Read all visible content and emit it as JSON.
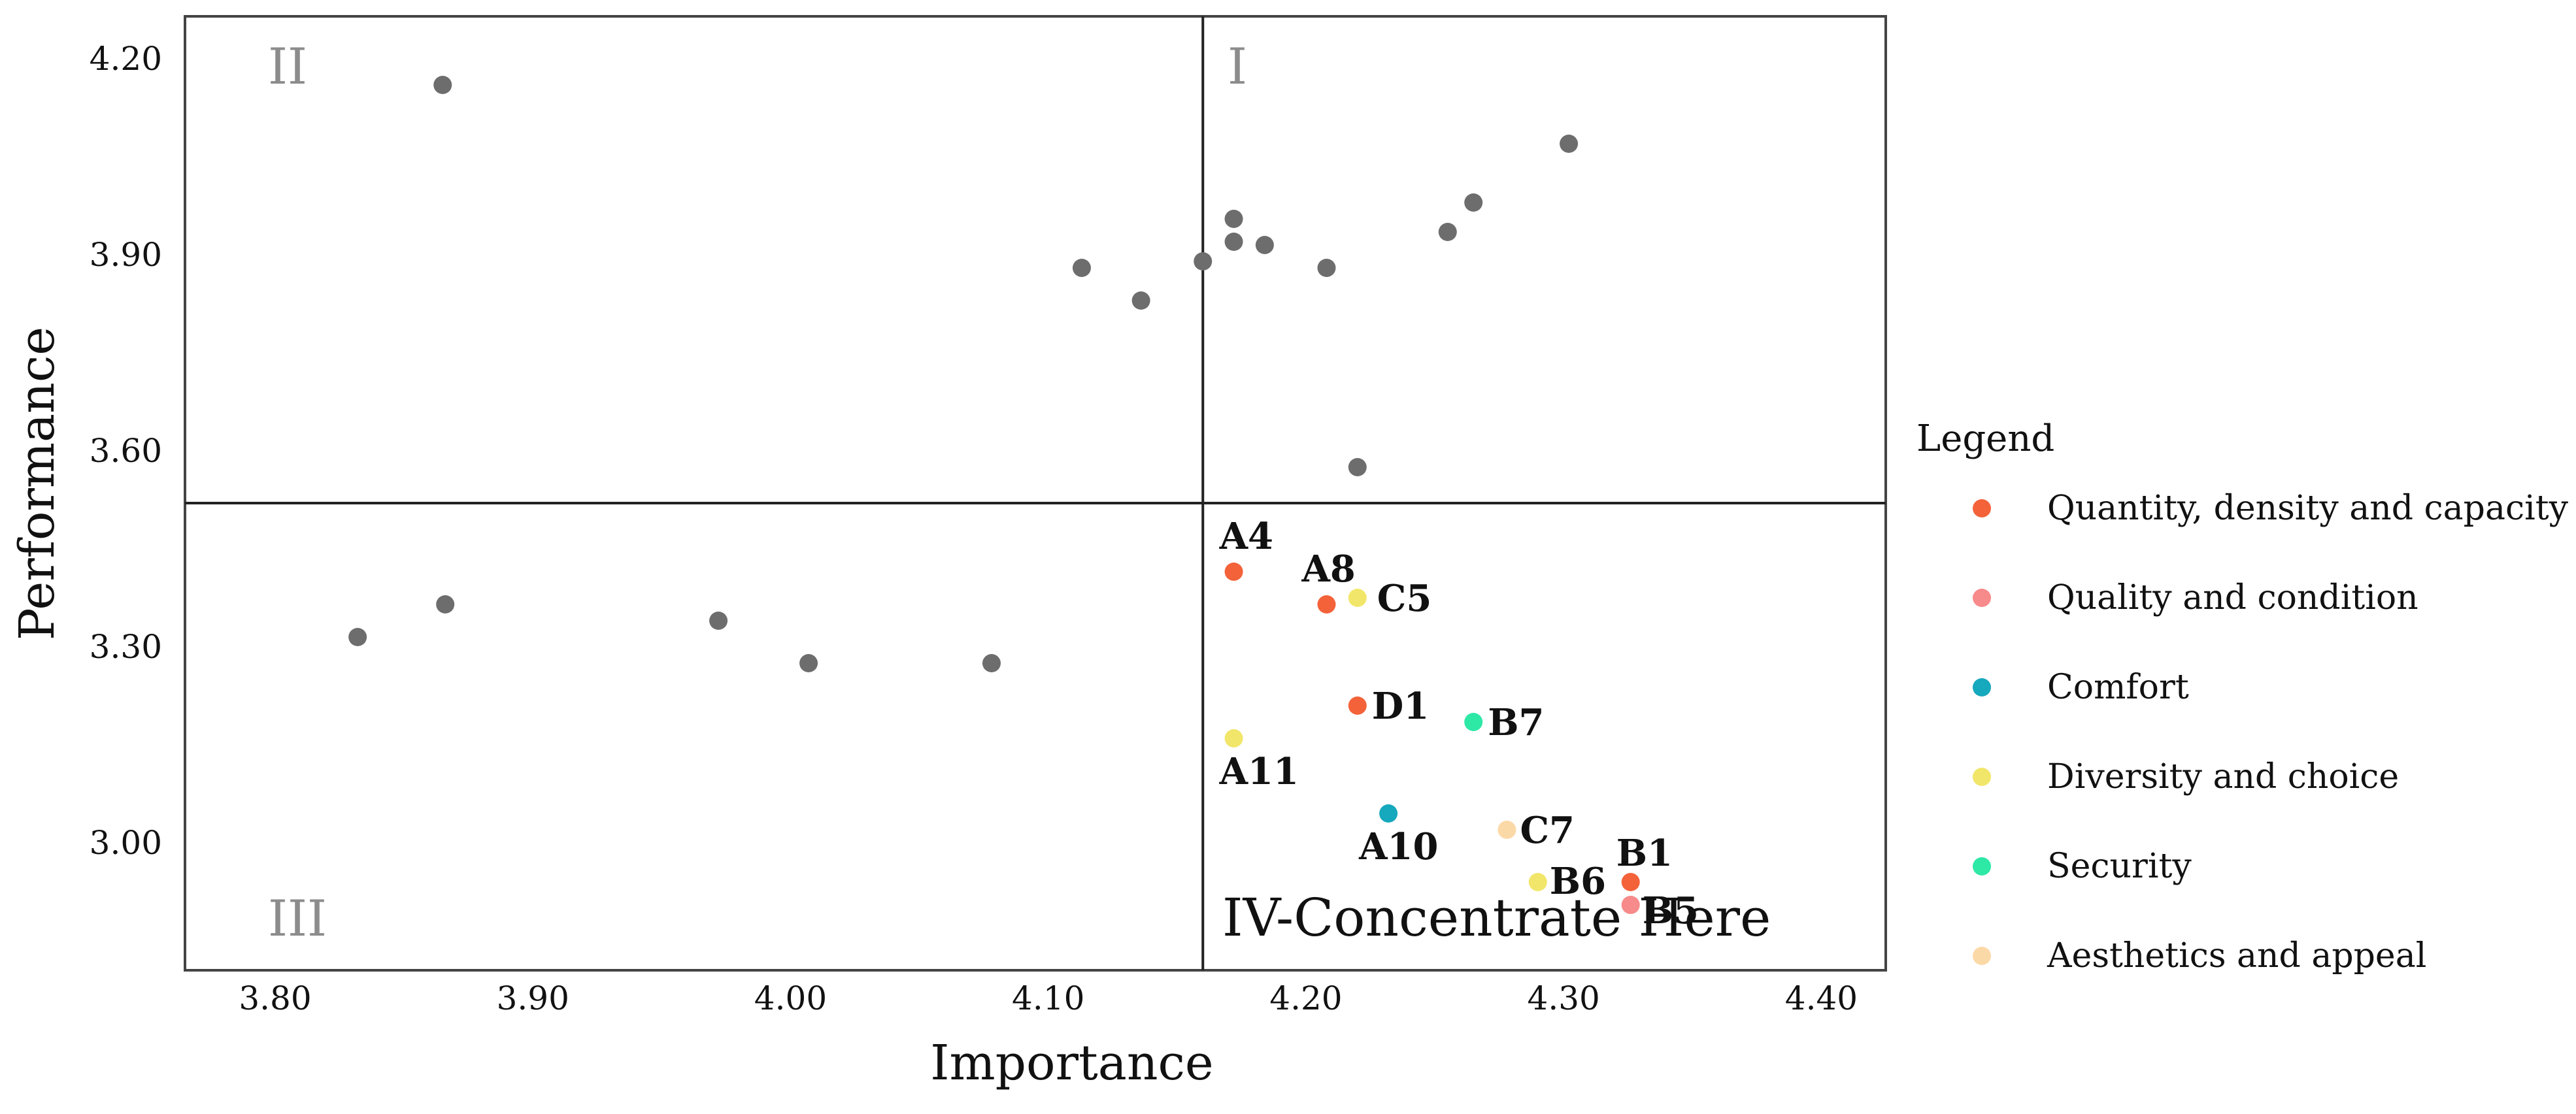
{
  "chart_data": {
    "type": "scatter",
    "title": "",
    "xlabel": "Importance",
    "ylabel": "Performance",
    "xlim": [
      3.765,
      4.425
    ],
    "ylim": [
      2.805,
      4.265
    ],
    "xticks": [
      "3.80",
      "3.90",
      "4.00",
      "4.10",
      "4.20",
      "4.30",
      "4.40"
    ],
    "yticks": [
      "3.00",
      "3.30",
      "3.60",
      "3.90",
      "4.20"
    ],
    "divider_x": 4.16,
    "divider_y": 3.52,
    "quadrants": {
      "I": "I",
      "II": "II",
      "III": "III",
      "IV": "IV-Concentrate Here"
    },
    "background_points": [
      {
        "x": 3.865,
        "y": 4.16
      },
      {
        "x": 4.302,
        "y": 4.07
      },
      {
        "x": 4.265,
        "y": 3.98
      },
      {
        "x": 4.255,
        "y": 3.935
      },
      {
        "x": 4.172,
        "y": 3.955
      },
      {
        "x": 4.172,
        "y": 3.92
      },
      {
        "x": 4.184,
        "y": 3.915
      },
      {
        "x": 4.16,
        "y": 3.89
      },
      {
        "x": 4.113,
        "y": 3.88
      },
      {
        "x": 4.208,
        "y": 3.88
      },
      {
        "x": 4.136,
        "y": 3.83
      },
      {
        "x": 4.22,
        "y": 3.575
      },
      {
        "x": 3.832,
        "y": 3.315
      },
      {
        "x": 3.866,
        "y": 3.365
      },
      {
        "x": 3.972,
        "y": 3.34
      },
      {
        "x": 4.007,
        "y": 3.275
      },
      {
        "x": 4.078,
        "y": 3.275
      }
    ],
    "labeled_points": [
      {
        "label": "A4",
        "x": 4.172,
        "y": 3.415,
        "category": "Quantity, density and capacity"
      },
      {
        "label": "A8",
        "x": 4.208,
        "y": 3.365,
        "category": "Quantity, density and capacity"
      },
      {
        "label": "C5",
        "x": 4.22,
        "y": 3.375,
        "category": "Diversity and choice"
      },
      {
        "label": "D1",
        "x": 4.22,
        "y": 3.21,
        "category": "Quantity, density and capacity"
      },
      {
        "label": "B7",
        "x": 4.265,
        "y": 3.185,
        "category": "Security"
      },
      {
        "label": "A11",
        "x": 4.172,
        "y": 3.16,
        "category": "Diversity and choice"
      },
      {
        "label": "A10",
        "x": 4.232,
        "y": 3.045,
        "category": "Comfort"
      },
      {
        "label": "C7",
        "x": 4.278,
        "y": 3.02,
        "category": "Aesthetics and appeal"
      },
      {
        "label": "B1",
        "x": 4.326,
        "y": 2.94,
        "category": "Quantity, density and capacity"
      },
      {
        "label": "B6",
        "x": 4.29,
        "y": 2.94,
        "category": "Diversity and choice"
      },
      {
        "label": "B5",
        "x": 4.326,
        "y": 2.905,
        "category": "Quality and condition"
      }
    ],
    "legend": {
      "title": "Legend",
      "position": "right",
      "items": [
        {
          "name": "Quantity, density and capacity",
          "color": "#f4623a"
        },
        {
          "name": "Quality and condition",
          "color": "#f78a8a"
        },
        {
          "name": "Comfort",
          "color": "#16a8bd"
        },
        {
          "name": "Diversity and choice",
          "color": "#f2e66a"
        },
        {
          "name": "Security",
          "color": "#2ee8a6"
        },
        {
          "name": "Aesthetics and appeal",
          "color": "#fbd9a7"
        }
      ]
    },
    "background_color": "#6d6d6d",
    "grid": false
  }
}
